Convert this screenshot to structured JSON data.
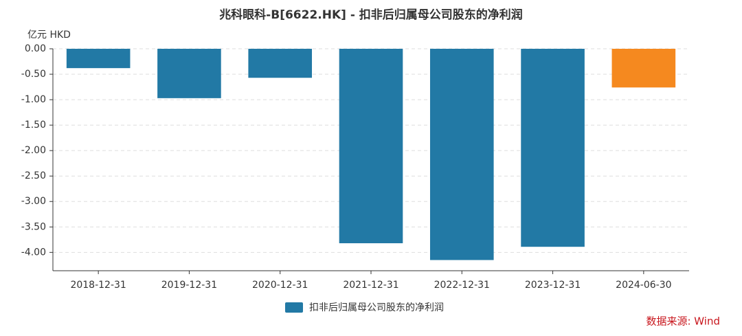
{
  "chart_data": {
    "type": "bar",
    "title": "兆科眼科-B[6622.HK] - 扣非后归属母公司股东的净利润",
    "y_label": "亿元  HKD",
    "source": "数据来源: Wind",
    "categories": [
      "2018-12-31",
      "2019-12-31",
      "2020-12-31",
      "2021-12-31",
      "2022-12-31",
      "2023-12-31",
      "2024-06-30"
    ],
    "series": [
      {
        "name": "扣非后归属母公司股东的净利润",
        "color": "#2279a5",
        "values": [
          -0.38,
          -0.97,
          -0.57,
          -3.82,
          -4.15,
          -3.89,
          -0.76
        ],
        "colors": [
          "#2279a5",
          "#2279a5",
          "#2279a5",
          "#2279a5",
          "#2279a5",
          "#2279a5",
          "#f5891f"
        ]
      }
    ],
    "ylim": [
      -4.36,
      0
    ],
    "yticks": [
      {
        "value": 0,
        "label": "0.00"
      },
      {
        "value": -0.5,
        "label": "-0.50"
      },
      {
        "value": -1,
        "label": "-1.00"
      },
      {
        "value": -1.5,
        "label": "-1.50"
      },
      {
        "value": -2,
        "label": "-2.00"
      },
      {
        "value": -2.5,
        "label": "-2.50"
      },
      {
        "value": -3,
        "label": "-3.00"
      },
      {
        "value": -3.5,
        "label": "-3.50"
      },
      {
        "value": -4,
        "label": "-4.00"
      }
    ],
    "grid": true
  }
}
